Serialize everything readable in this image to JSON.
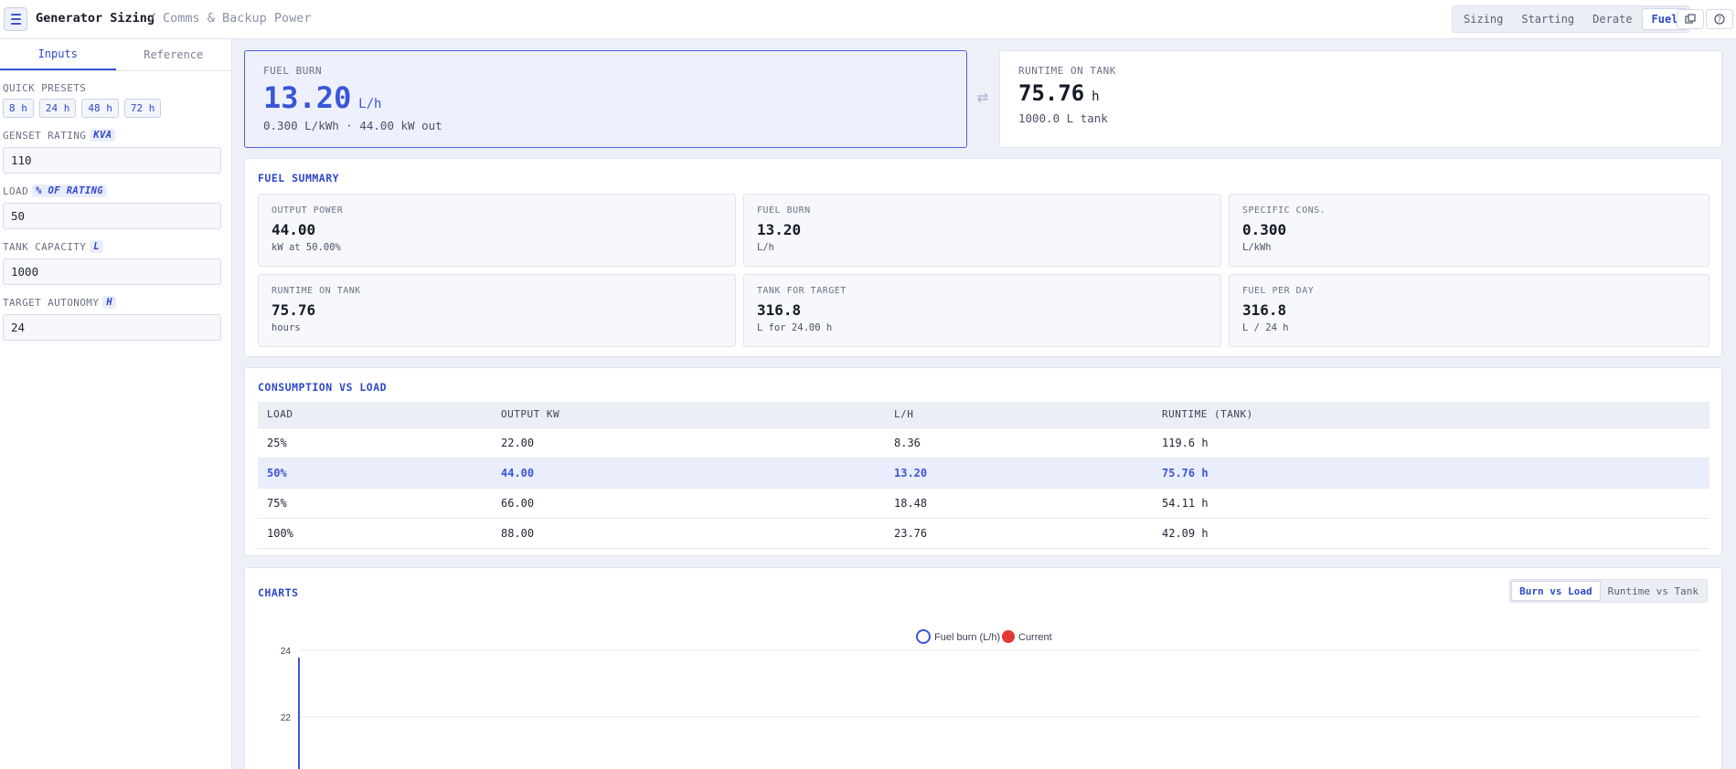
{
  "header": {
    "title": "Generator Sizing",
    "separator": "/",
    "subtitle": "Comms & Backup Power",
    "tabs": [
      {
        "label": "Sizing",
        "active": false
      },
      {
        "label": "Starting",
        "active": false
      },
      {
        "label": "Derate",
        "active": false
      },
      {
        "label": "Fuel",
        "active": true
      }
    ],
    "icons": [
      "menu-icon",
      "copy-icon",
      "help-icon"
    ]
  },
  "sidebar": {
    "tabs": [
      "Inputs",
      "Reference"
    ],
    "presets_label": "QUICK PRESETS",
    "presets": [
      "8 h",
      "24 h",
      "48 h",
      "72 h"
    ],
    "fields": [
      {
        "label": "GENSET RATING",
        "unit": "KVA",
        "value": "110"
      },
      {
        "label": "LOAD",
        "unit": "% OF RATING",
        "value": "50"
      },
      {
        "label": "TANK CAPACITY",
        "unit": "L",
        "value": "1000"
      },
      {
        "label": "TARGET AUTONOMY",
        "unit": "H",
        "value": "24"
      }
    ]
  },
  "kpis": {
    "fuel_burn": {
      "label": "FUEL BURN",
      "value": "13.20",
      "unit": "L/h",
      "sub": "0.300 L/kWh · 44.00 kW out"
    },
    "swap_icon": "swap-icon",
    "runtime": {
      "label": "RUNTIME ON TANK",
      "value": "75.76",
      "unit": "h",
      "sub": "1000.0 L tank"
    }
  },
  "summary": {
    "title": "FUEL SUMMARY",
    "tiles": [
      {
        "label": "OUTPUT POWER",
        "value": "44.00",
        "sub": "kW at 50.00%"
      },
      {
        "label": "FUEL BURN",
        "value": "13.20",
        "sub": "L/h"
      },
      {
        "label": "SPECIFIC CONS.",
        "value": "0.300",
        "sub": "L/kWh"
      },
      {
        "label": "RUNTIME ON TANK",
        "value": "75.76",
        "sub": "hours"
      },
      {
        "label": "TANK FOR TARGET",
        "value": "316.8",
        "sub": "L for 24.00 h"
      },
      {
        "label": "FUEL PER DAY",
        "value": "316.8",
        "sub": "L / 24 h"
      }
    ]
  },
  "table": {
    "title": "CONSUMPTION VS LOAD",
    "headers": [
      "LOAD",
      "OUTPUT KW",
      "L/H",
      "RUNTIME (TANK)"
    ],
    "rows": [
      [
        "25%",
        "22.00",
        "8.36",
        "119.6 h"
      ],
      [
        "50%",
        "44.00",
        "13.20",
        "75.76 h"
      ],
      [
        "75%",
        "66.00",
        "18.48",
        "54.11 h"
      ],
      [
        "100%",
        "88.00",
        "23.76",
        "42.09 h"
      ]
    ],
    "highlight_row": 1
  },
  "charts": {
    "title": "CHARTS",
    "toggles": [
      {
        "label": "Burn vs Load",
        "active": true
      },
      {
        "label": "Runtime vs Tank",
        "active": false
      }
    ]
  },
  "chart_data": {
    "type": "line",
    "series": [
      {
        "name": "Fuel burn (L/h)",
        "color": "#3b55d6"
      },
      {
        "name": "Current",
        "color": "#e53935"
      }
    ],
    "yticks": [
      "24",
      "22"
    ],
    "legend": "top-center",
    "grid": true
  }
}
